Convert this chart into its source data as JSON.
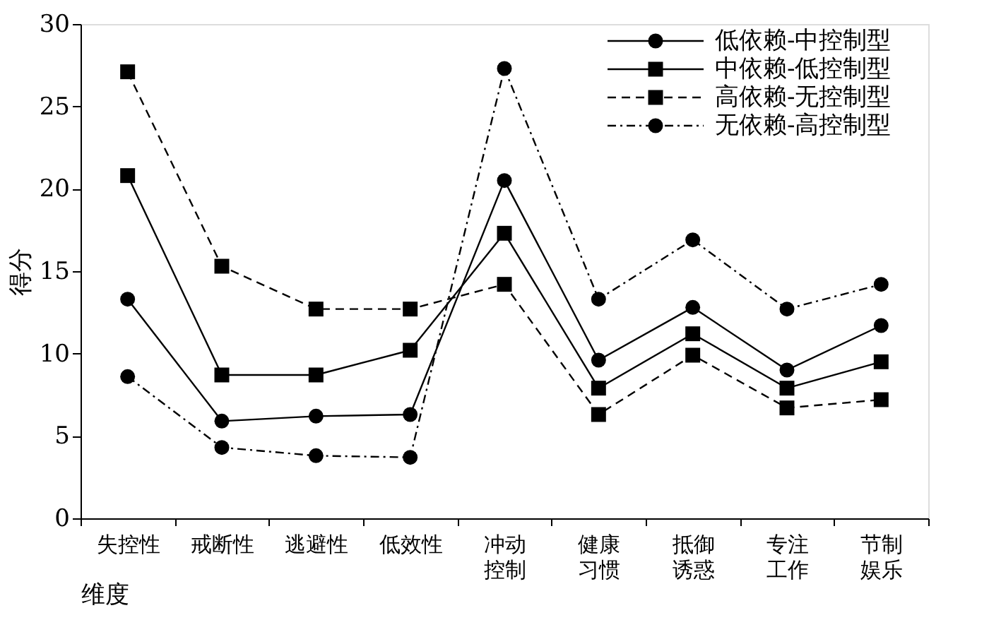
{
  "chart_data": {
    "type": "line",
    "xlabel": "维度",
    "ylabel": "得分",
    "categories": [
      "失控性",
      "戒断性",
      "逃避性",
      "低效性",
      "冲动控制",
      "健康习惯",
      "抵御诱惑",
      "专注工作",
      "节制娱乐"
    ],
    "ylim": [
      0,
      30
    ],
    "yticks": [
      0,
      5,
      10,
      15,
      20,
      25,
      30
    ],
    "grid": false,
    "legend": "top right",
    "series": [
      {
        "name": "低依赖-中控制型",
        "color": "#000000",
        "marker": "circle",
        "line_style": "solid",
        "values": [
          13.3,
          5.9,
          6.2,
          6.3,
          20.5,
          9.6,
          12.8,
          9.0,
          11.7
        ]
      },
      {
        "name": "中依赖-低控制型",
        "color": "#000000",
        "marker": "square",
        "line_style": "solid",
        "values": [
          20.8,
          8.7,
          8.7,
          10.2,
          17.3,
          7.9,
          11.2,
          7.9,
          9.5
        ]
      },
      {
        "name": "高依赖-无控制型",
        "color": "#000000",
        "marker": "square",
        "line_style": "dashed",
        "values": [
          27.1,
          15.3,
          12.7,
          12.7,
          14.2,
          6.3,
          9.9,
          6.7,
          7.2
        ]
      },
      {
        "name": "无依赖-高控制型",
        "color": "#000000",
        "marker": "circle",
        "line_style": "dashdot",
        "values": [
          8.6,
          4.3,
          3.8,
          3.7,
          27.3,
          13.3,
          16.9,
          12.7,
          14.2
        ]
      }
    ]
  }
}
